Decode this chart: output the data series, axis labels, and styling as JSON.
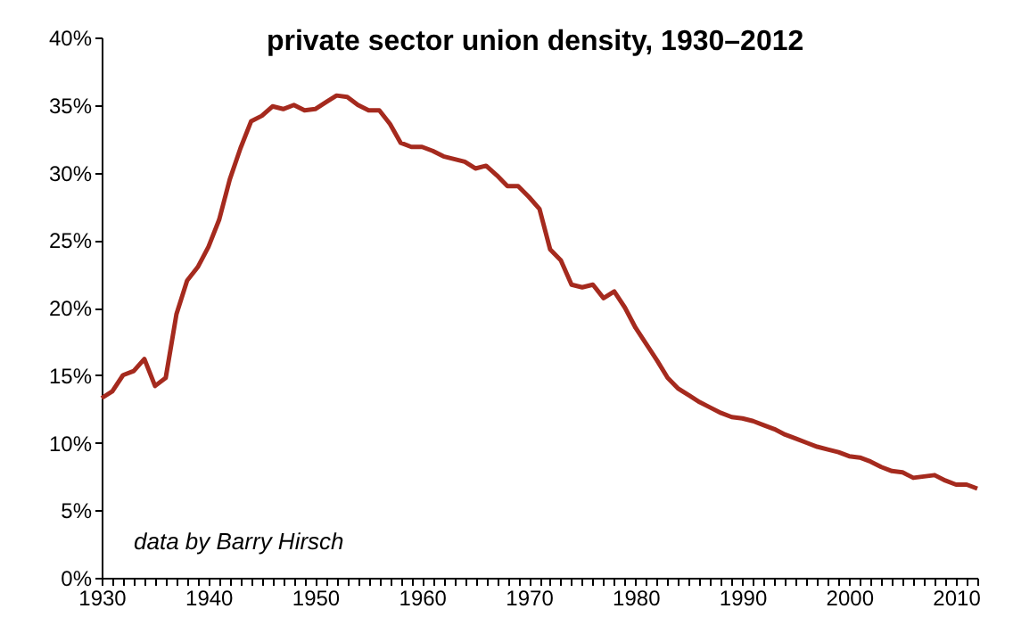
{
  "chart_data": {
    "type": "line",
    "title": "private sector union density, 1930–2012",
    "annotations": [
      "data by Barry Hirsch"
    ],
    "x": [
      1930,
      1931,
      1932,
      1933,
      1934,
      1935,
      1936,
      1937,
      1938,
      1939,
      1940,
      1941,
      1942,
      1943,
      1944,
      1945,
      1946,
      1947,
      1948,
      1949,
      1950,
      1951,
      1952,
      1953,
      1954,
      1955,
      1956,
      1957,
      1958,
      1959,
      1960,
      1961,
      1962,
      1963,
      1964,
      1965,
      1966,
      1967,
      1968,
      1969,
      1970,
      1971,
      1972,
      1973,
      1974,
      1975,
      1976,
      1977,
      1978,
      1979,
      1980,
      1981,
      1982,
      1983,
      1984,
      1985,
      1986,
      1987,
      1988,
      1989,
      1990,
      1991,
      1992,
      1993,
      1994,
      1995,
      1996,
      1997,
      1998,
      1999,
      2000,
      2001,
      2002,
      2003,
      2004,
      2005,
      2006,
      2007,
      2008,
      2009,
      2010,
      2011,
      2012
    ],
    "series": [
      {
        "color": "#a52a1e",
        "values": [
          13.3,
          13.8,
          15.0,
          15.3,
          16.2,
          14.2,
          14.8,
          19.5,
          22.0,
          23.0,
          24.5,
          26.5,
          29.5,
          31.8,
          33.8,
          34.2,
          34.9,
          34.7,
          35.0,
          34.6,
          34.7,
          35.2,
          35.7,
          35.6,
          35.0,
          34.6,
          34.6,
          33.6,
          32.2,
          31.9,
          31.9,
          31.6,
          31.2,
          31.0,
          30.8,
          30.3,
          30.5,
          29.8,
          29.0,
          29.0,
          28.2,
          27.3,
          24.3,
          23.5,
          21.7,
          21.5,
          21.7,
          20.7,
          21.2,
          20.0,
          18.5,
          17.3,
          16.1,
          14.8,
          14.0,
          13.5,
          13.0,
          12.6,
          12.2,
          11.9,
          11.8,
          11.6,
          11.3,
          11.0,
          10.6,
          10.3,
          10.0,
          9.7,
          9.5,
          9.3,
          9.0,
          8.9,
          8.6,
          8.2,
          7.9,
          7.8,
          7.4,
          7.5,
          7.6,
          7.2,
          6.9,
          6.9,
          6.6
        ]
      }
    ],
    "xlim": [
      1930,
      2012
    ],
    "xticks": [
      1930,
      {
        "value": 1931,
        "label": null
      },
      {
        "value": 1932,
        "label": null
      },
      {
        "value": 1933,
        "label": null
      },
      {
        "value": 1934,
        "label": null
      },
      {
        "value": 1935,
        "label": null
      },
      {
        "value": 1936,
        "label": null
      },
      {
        "value": 1937,
        "label": null
      },
      {
        "value": 1938,
        "label": null
      },
      {
        "value": 1939,
        "label": null
      },
      1940,
      {
        "value": 1941,
        "label": null
      },
      {
        "value": 1942,
        "label": null
      },
      {
        "value": 1943,
        "label": null
      },
      {
        "value": 1944,
        "label": null
      },
      {
        "value": 1945,
        "label": null
      },
      {
        "value": 1946,
        "label": null
      },
      {
        "value": 1947,
        "label": null
      },
      {
        "value": 1948,
        "label": null
      },
      {
        "value": 1949,
        "label": null
      },
      1950,
      {
        "value": 1951,
        "label": null
      },
      {
        "value": 1952,
        "label": null
      },
      {
        "value": 1953,
        "label": null
      },
      {
        "value": 1954,
        "label": null
      },
      {
        "value": 1955,
        "label": null
      },
      {
        "value": 1956,
        "label": null
      },
      {
        "value": 1957,
        "label": null
      },
      {
        "value": 1958,
        "label": null
      },
      {
        "value": 1959,
        "label": null
      },
      1960,
      {
        "value": 1961,
        "label": null
      },
      {
        "value": 1962,
        "label": null
      },
      {
        "value": 1963,
        "label": null
      },
      {
        "value": 1964,
        "label": null
      },
      {
        "value": 1965,
        "label": null
      },
      {
        "value": 1966,
        "label": null
      },
      {
        "value": 1967,
        "label": null
      },
      {
        "value": 1968,
        "label": null
      },
      {
        "value": 1969,
        "label": null
      },
      1970,
      {
        "value": 1971,
        "label": null
      },
      {
        "value": 1972,
        "label": null
      },
      {
        "value": 1973,
        "label": null
      },
      {
        "value": 1974,
        "label": null
      },
      {
        "value": 1975,
        "label": null
      },
      {
        "value": 1976,
        "label": null
      },
      {
        "value": 1977,
        "label": null
      },
      {
        "value": 1978,
        "label": null
      },
      {
        "value": 1979,
        "label": null
      },
      1980,
      {
        "value": 1981,
        "label": null
      },
      {
        "value": 1982,
        "label": null
      },
      {
        "value": 1983,
        "label": null
      },
      {
        "value": 1984,
        "label": null
      },
      {
        "value": 1985,
        "label": null
      },
      {
        "value": 1986,
        "label": null
      },
      {
        "value": 1987,
        "label": null
      },
      {
        "value": 1988,
        "label": null
      },
      {
        "value": 1989,
        "label": null
      },
      1990,
      {
        "value": 1991,
        "label": null
      },
      {
        "value": 1992,
        "label": null
      },
      {
        "value": 1993,
        "label": null
      },
      {
        "value": 1994,
        "label": null
      },
      {
        "value": 1995,
        "label": null
      },
      {
        "value": 1996,
        "label": null
      },
      {
        "value": 1997,
        "label": null
      },
      {
        "value": 1998,
        "label": null
      },
      {
        "value": 1999,
        "label": null
      },
      2000,
      {
        "value": 2001,
        "label": null
      },
      {
        "value": 2002,
        "label": null
      },
      {
        "value": 2003,
        "label": null
      },
      {
        "value": 2004,
        "label": null
      },
      {
        "value": 2005,
        "label": null
      },
      {
        "value": 2006,
        "label": null
      },
      {
        "value": 2007,
        "label": null
      },
      {
        "value": 2008,
        "label": null
      },
      {
        "value": 2009,
        "label": null
      },
      2010,
      {
        "value": 2011,
        "label": null
      },
      {
        "value": 2012,
        "label": null
      }
    ],
    "ylim": [
      0,
      40
    ],
    "yticks": [
      {
        "value": 0,
        "label": "0%"
      },
      {
        "value": 5,
        "label": "5%"
      },
      {
        "value": 10,
        "label": "10%"
      },
      {
        "value": 15,
        "label": "15%"
      },
      {
        "value": 20,
        "label": "20%"
      },
      {
        "value": 25,
        "label": "25%"
      },
      {
        "value": 30,
        "label": "30%"
      },
      {
        "value": 35,
        "label": "35%"
      },
      {
        "value": 40,
        "label": "40%"
      }
    ],
    "grid": false,
    "marker": "none",
    "line_style": "solid"
  }
}
